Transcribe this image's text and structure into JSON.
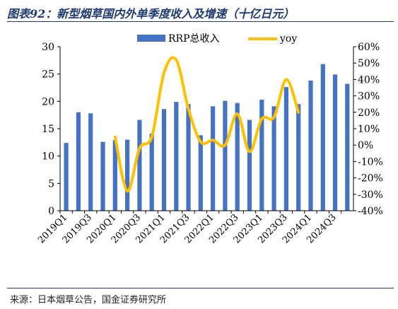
{
  "title": "图表92：新型烟草国内外单季度收入及增速（十亿日元）",
  "source": "来源：日本烟草公告，国金证券研究所",
  "chart_data": {
    "type": "bar",
    "categories": [
      "2019Q1",
      "2019Q2",
      "2019Q3",
      "2019Q4",
      "2020Q1",
      "2020Q2",
      "2020Q3",
      "2020Q4",
      "2021Q1",
      "2021Q2",
      "2021Q3",
      "2021Q4",
      "2022Q1",
      "2022Q2",
      "2022Q3",
      "2022Q4",
      "2023Q1",
      "2023Q2",
      "2023Q3",
      "2023Q4",
      "2024Q1",
      "2024Q2",
      "2024Q3",
      "2024Q4"
    ],
    "x_tick_labels": [
      "2019Q1",
      "",
      "2019Q3",
      "",
      "2020Q1",
      "",
      "2020Q3",
      "",
      "2021Q1",
      "",
      "2021Q3",
      "",
      "2022Q1",
      "",
      "2022Q3",
      "",
      "2023Q1",
      "",
      "2023Q3",
      "",
      "2024Q1",
      "",
      "2024Q3",
      ""
    ],
    "series": [
      {
        "name": "RRP总收入",
        "axis": "left",
        "type": "bar",
        "color": "#4472c4",
        "values": [
          12.4,
          18.0,
          17.8,
          12.6,
          12.9,
          13.0,
          16.6,
          14.1,
          18.6,
          19.9,
          19.5,
          13.8,
          19.1,
          20.1,
          19.7,
          16.6,
          20.3,
          19.1,
          22.6,
          19.5,
          23.8,
          26.8,
          24.9,
          23.2
        ]
      },
      {
        "name": "yoy",
        "axis": "right",
        "type": "line",
        "color": "#ffc000",
        "values": [
          null,
          null,
          null,
          null,
          5,
          -28,
          -2,
          5,
          44,
          52,
          22,
          2,
          3,
          0,
          19,
          -4,
          16,
          17,
          40,
          20,
          null,
          null,
          null,
          null
        ]
      }
    ],
    "left_axis": {
      "min": 0,
      "max": 30,
      "ticks": [
        "0",
        "5",
        "10",
        "15",
        "20",
        "25",
        "30"
      ]
    },
    "right_axis": {
      "min": -40,
      "max": 60,
      "ticks": [
        "-40%",
        "-30%",
        "-20%",
        "-10%",
        "0%",
        "10%",
        "20%",
        "30%",
        "40%",
        "50%",
        "60%"
      ]
    },
    "legend": {
      "placement": "top-center"
    },
    "grid": false
  }
}
